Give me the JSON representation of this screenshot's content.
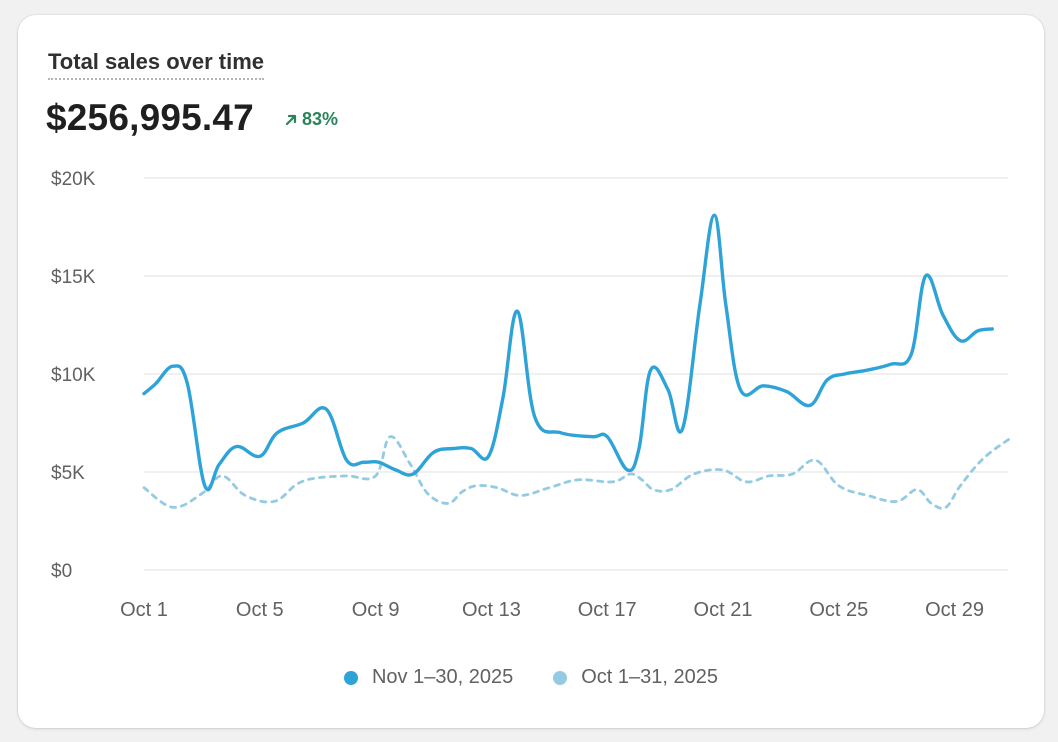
{
  "card": {
    "title": "Total sales over time",
    "total": "$256,995.47",
    "change": "83%",
    "change_direction": "up",
    "change_color": "#29845a"
  },
  "chart_data": {
    "type": "line",
    "title": "Total sales over time",
    "xlabel": "",
    "ylabel": "",
    "ylim": [
      0,
      20000
    ],
    "y_ticks": [
      0,
      5000,
      10000,
      15000,
      20000
    ],
    "y_tick_labels": [
      "$0",
      "$5K",
      "$10K",
      "$15K",
      "$20K"
    ],
    "x_ticks": [
      1,
      5,
      9,
      13,
      17,
      21,
      25,
      29
    ],
    "x_tick_labels": [
      "Oct 1",
      "Oct 5",
      "Oct 9",
      "Oct 13",
      "Oct 17",
      "Oct 21",
      "Oct 25",
      "Oct 29"
    ],
    "grid": true,
    "legend_position": "bottom-center",
    "series": [
      {
        "name": "Nov 1–30, 2025",
        "color": "#2ea3d8",
        "style": "solid",
        "x": [
          1,
          1.4,
          2,
          2.5,
          3.1,
          3.6,
          4.2,
          5,
          5.6,
          6.5,
          7.3,
          8,
          8.6,
          9.1,
          9.7,
          10.3,
          11,
          11.7,
          12.3,
          12.9,
          13.4,
          13.9,
          14.5,
          15.4,
          16.5,
          17,
          17.7,
          18.1,
          18.5,
          19.1,
          19.6,
          20.2,
          20.7,
          21.1,
          21.6,
          22.4,
          23.2,
          24,
          24.6,
          25.2,
          26,
          26.8,
          27.5,
          28,
          28.6,
          29.2,
          29.8,
          30.3
        ],
        "values": [
          9000,
          9500,
          10400,
          9500,
          4300,
          5400,
          6300,
          5800,
          7000,
          7500,
          8200,
          5600,
          5500,
          5500,
          5100,
          4900,
          6000,
          6200,
          6200,
          5800,
          8800,
          13200,
          7800,
          7000,
          6800,
          6800,
          5100,
          6200,
          10200,
          9200,
          7200,
          13500,
          18100,
          13500,
          9200,
          9400,
          9100,
          8400,
          9700,
          10000,
          10200,
          10500,
          11000,
          15000,
          13000,
          11700,
          12200,
          12300
        ]
      },
      {
        "name": "Oct 1–31, 2025",
        "color": "#93cbe3",
        "style": "dashed",
        "x": [
          1,
          2,
          3,
          3.7,
          4.5,
          5.5,
          6.3,
          7,
          8,
          9,
          9.5,
          10.2,
          10.8,
          11.5,
          12,
          12.5,
          13.2,
          14,
          15,
          16,
          17.2,
          17.8,
          18.2,
          18.6,
          19.2,
          20,
          21,
          21.8,
          22.6,
          23.4,
          24.2,
          25,
          26,
          27,
          27.7,
          28.2,
          28.7,
          29.2,
          30,
          31
        ],
        "values": [
          4200,
          3200,
          3900,
          4800,
          3800,
          3500,
          4400,
          4700,
          4800,
          4800,
          6800,
          5400,
          3900,
          3400,
          4000,
          4300,
          4200,
          3800,
          4200,
          4600,
          4500,
          4900,
          4600,
          4100,
          4100,
          4900,
          5100,
          4500,
          4800,
          4900,
          5600,
          4300,
          3800,
          3500,
          4100,
          3400,
          3200,
          4300,
          5700,
          6800
        ]
      }
    ]
  }
}
